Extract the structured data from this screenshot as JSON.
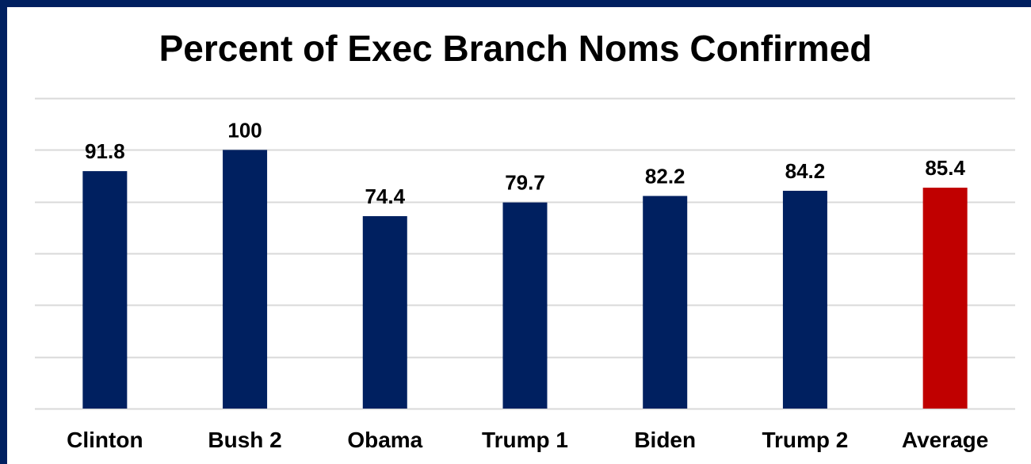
{
  "chart_data": {
    "type": "bar",
    "title": "Percent of Exec Branch Noms Confirmed",
    "xlabel": "",
    "ylabel": "",
    "categories": [
      "Clinton",
      "Bush 2",
      "Obama",
      "Trump 1",
      "Biden",
      "Trump 2",
      "Average"
    ],
    "values": [
      91.8,
      100,
      74.4,
      79.7,
      82.2,
      84.2,
      85.4
    ],
    "data_labels": [
      "91.8",
      "100",
      "74.4",
      "79.7",
      "82.2",
      "84.2",
      "85.4"
    ],
    "ylim": [
      0,
      120
    ],
    "grid": true,
    "legend": "none",
    "colors": {
      "bar": "#002060",
      "highlight": "#C00000",
      "highlight_category": "Average",
      "frame": "#002060",
      "grid": "#d9d9d9"
    }
  }
}
